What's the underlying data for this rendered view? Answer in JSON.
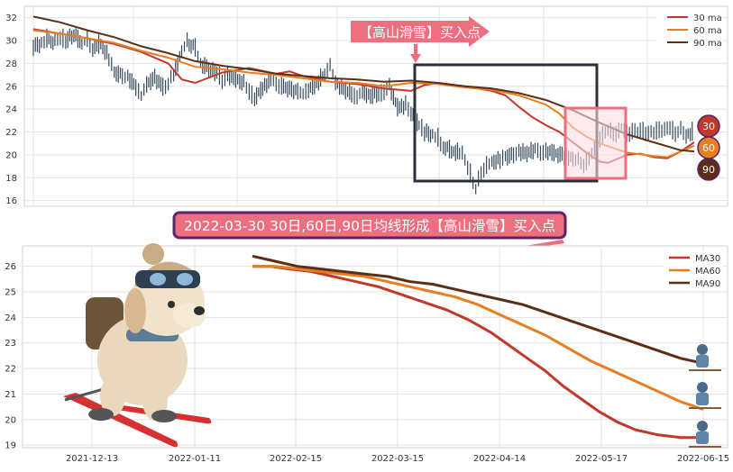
{
  "chart_data": [
    {
      "type": "line",
      "panel": "top",
      "ylim": [
        15.5,
        33
      ],
      "yticks": [
        16,
        18,
        20,
        22,
        24,
        26,
        28,
        30,
        32
      ],
      "grid": true,
      "legend_position": "top-right",
      "series": [
        {
          "name": "30 ma",
          "color": "#c0392b",
          "points": [
            [
              0,
              31.0
            ],
            [
              10,
              30.6
            ],
            [
              20,
              30.2
            ],
            [
              30,
              29.7
            ],
            [
              40,
              29.0
            ],
            [
              50,
              28.0
            ],
            [
              55,
              26.6
            ],
            [
              60,
              26.3
            ],
            [
              70,
              27.2
            ],
            [
              80,
              27.6
            ],
            [
              90,
              27.1
            ],
            [
              95,
              27.3
            ],
            [
              100,
              26.9
            ],
            [
              110,
              26.4
            ],
            [
              120,
              26.2
            ],
            [
              130,
              25.8
            ],
            [
              140,
              25.6
            ],
            [
              145,
              26.1
            ],
            [
              150,
              26.3
            ],
            [
              160,
              26.0
            ],
            [
              170,
              25.6
            ],
            [
              175,
              25.2
            ],
            [
              180,
              24.2
            ],
            [
              185,
              23.3
            ],
            [
              190,
              22.6
            ],
            [
              195,
              22.0
            ],
            [
              200,
              21.1
            ],
            [
              205,
              20.2
            ],
            [
              210,
              19.4
            ],
            [
              213,
              19.3
            ],
            [
              216,
              19.6
            ],
            [
              220,
              20.0
            ],
            [
              225,
              20.1
            ],
            [
              230,
              19.8
            ],
            [
              235,
              19.7
            ],
            [
              240,
              20.3
            ],
            [
              245,
              21.1
            ]
          ]
        },
        {
          "name": "60 ma",
          "color": "#e67e22",
          "points": [
            [
              0,
              30.9
            ],
            [
              10,
              30.6
            ],
            [
              20,
              30.2
            ],
            [
              30,
              29.8
            ],
            [
              40,
              29.1
            ],
            [
              50,
              28.5
            ],
            [
              60,
              27.7
            ],
            [
              70,
              27.5
            ],
            [
              80,
              27.2
            ],
            [
              90,
              27.0
            ],
            [
              100,
              26.7
            ],
            [
              110,
              26.4
            ],
            [
              120,
              26.3
            ],
            [
              130,
              26.0
            ],
            [
              140,
              26.3
            ],
            [
              150,
              26.2
            ],
            [
              160,
              25.9
            ],
            [
              170,
              25.7
            ],
            [
              180,
              25.2
            ],
            [
              190,
              24.4
            ],
            [
              195,
              23.6
            ],
            [
              200,
              22.4
            ],
            [
              205,
              21.6
            ],
            [
              210,
              21.0
            ],
            [
              215,
              20.6
            ],
            [
              220,
              20.2
            ],
            [
              230,
              19.9
            ],
            [
              235,
              19.8
            ],
            [
              240,
              20.3
            ],
            [
              245,
              20.8
            ]
          ]
        },
        {
          "name": "90 ma",
          "color": "#5d2e17",
          "points": [
            [
              0,
              32.1
            ],
            [
              10,
              31.6
            ],
            [
              20,
              30.9
            ],
            [
              30,
              30.3
            ],
            [
              40,
              29.5
            ],
            [
              50,
              28.9
            ],
            [
              60,
              28.2
            ],
            [
              70,
              27.8
            ],
            [
              80,
              27.5
            ],
            [
              90,
              27.1
            ],
            [
              100,
              26.9
            ],
            [
              110,
              26.7
            ],
            [
              120,
              26.6
            ],
            [
              130,
              26.4
            ],
            [
              140,
              26.5
            ],
            [
              150,
              26.3
            ],
            [
              160,
              26.0
            ],
            [
              170,
              25.8
            ],
            [
              180,
              25.4
            ],
            [
              190,
              24.8
            ],
            [
              200,
              23.9
            ],
            [
              210,
              22.8
            ],
            [
              220,
              21.8
            ],
            [
              230,
              21.1
            ],
            [
              240,
              20.4
            ],
            [
              245,
              20.3
            ]
          ]
        }
      ],
      "candles": [
        [
          0,
          29.5
        ],
        [
          3,
          29.8
        ],
        [
          5,
          30.2
        ],
        [
          8,
          29.9
        ],
        [
          10,
          30.4
        ],
        [
          12,
          30.0
        ],
        [
          15,
          30.6
        ],
        [
          18,
          29.8
        ],
        [
          20,
          30.1
        ],
        [
          22,
          29.4
        ],
        [
          25,
          29.8
        ],
        [
          28,
          28.5
        ],
        [
          30,
          27.2
        ],
        [
          33,
          27.0
        ],
        [
          35,
          26.8
        ],
        [
          38,
          26.0
        ],
        [
          40,
          25.2
        ],
        [
          42,
          26.2
        ],
        [
          45,
          26.8
        ],
        [
          48,
          26.0
        ],
        [
          50,
          26.3
        ],
        [
          52,
          27.0
        ],
        [
          55,
          29.2
        ],
        [
          57,
          29.9
        ],
        [
          60,
          29.4
        ],
        [
          62,
          28.0
        ],
        [
          65,
          27.6
        ],
        [
          68,
          27.2
        ],
        [
          70,
          26.6
        ],
        [
          72,
          27.0
        ],
        [
          75,
          26.7
        ],
        [
          78,
          26.3
        ],
        [
          80,
          25.6
        ],
        [
          82,
          25.0
        ],
        [
          85,
          25.9
        ],
        [
          88,
          26.6
        ],
        [
          90,
          26.2
        ],
        [
          92,
          26.1
        ],
        [
          95,
          25.8
        ],
        [
          98,
          25.6
        ],
        [
          100,
          25.3
        ],
        [
          102,
          25.8
        ],
        [
          105,
          26.2
        ],
        [
          108,
          27.2
        ],
        [
          110,
          27.8
        ],
        [
          112,
          26.4
        ],
        [
          115,
          25.8
        ],
        [
          118,
          25.4
        ],
        [
          120,
          25.1
        ],
        [
          122,
          25.5
        ],
        [
          125,
          25.2
        ],
        [
          128,
          25.4
        ],
        [
          130,
          25.6
        ],
        [
          132,
          26.0
        ],
        [
          135,
          24.2
        ],
        [
          138,
          24.4
        ],
        [
          140,
          23.8
        ],
        [
          143,
          22.6
        ],
        [
          145,
          22.0
        ],
        [
          148,
          21.8
        ],
        [
          150,
          21.5
        ],
        [
          152,
          20.8
        ],
        [
          155,
          20.4
        ],
        [
          158,
          20.2
        ],
        [
          160,
          19.7
        ],
        [
          162,
          18.4
        ],
        [
          164,
          17.0
        ],
        [
          166,
          18.6
        ],
        [
          168,
          19.1
        ],
        [
          170,
          19.4
        ],
        [
          173,
          19.6
        ],
        [
          175,
          19.8
        ],
        [
          178,
          20.1
        ],
        [
          180,
          20.3
        ],
        [
          183,
          20.2
        ],
        [
          186,
          20.5
        ],
        [
          188,
          20.3
        ],
        [
          190,
          20.4
        ],
        [
          193,
          20.2
        ],
        [
          196,
          20.0
        ],
        [
          200,
          19.8
        ],
        [
          202,
          19.5
        ],
        [
          204,
          19.2
        ],
        [
          206,
          19.8
        ],
        [
          208,
          20.4
        ],
        [
          210,
          21.5
        ],
        [
          212,
          22.0
        ],
        [
          214,
          22.1
        ],
        [
          216,
          21.9
        ],
        [
          218,
          22.3
        ],
        [
          220,
          21.9
        ],
        [
          222,
          22.1
        ],
        [
          224,
          22.0
        ],
        [
          226,
          22.2
        ],
        [
          228,
          21.8
        ],
        [
          230,
          22.0
        ],
        [
          232,
          22.3
        ],
        [
          234,
          22.1
        ],
        [
          236,
          22.5
        ],
        [
          238,
          21.9
        ],
        [
          240,
          22.2
        ],
        [
          242,
          21.8
        ],
        [
          245,
          22.1
        ]
      ],
      "badges": [
        "30",
        "60",
        "90"
      ]
    },
    {
      "type": "line",
      "panel": "bottom",
      "ylim": [
        18.9,
        26.8
      ],
      "yticks": [
        19,
        20,
        21,
        22,
        23,
        24,
        25,
        26
      ],
      "xtick_labels": [
        "2021-12-13",
        "2022-01-11",
        "2022-02-15",
        "2022-03-15",
        "2022-04-14",
        "2022-05-17",
        "2022-06-15"
      ],
      "grid": true,
      "legend_position": "top-right",
      "series": [
        {
          "name": "MA30",
          "color": "#c0392b",
          "points": [
            [
              0,
              26.0
            ],
            [
              8,
              26.0
            ],
            [
              16,
              25.9
            ],
            [
              26,
              25.8
            ],
            [
              36,
              25.6
            ],
            [
              46,
              25.4
            ],
            [
              56,
              25.2
            ],
            [
              66,
              24.9
            ],
            [
              76,
              24.6
            ],
            [
              86,
              24.3
            ],
            [
              96,
              23.9
            ],
            [
              106,
              23.4
            ],
            [
              114,
              22.9
            ],
            [
              122,
              22.4
            ],
            [
              130,
              21.9
            ],
            [
              138,
              21.3
            ],
            [
              146,
              20.8
            ],
            [
              154,
              20.3
            ],
            [
              162,
              19.9
            ],
            [
              170,
              19.6
            ],
            [
              180,
              19.4
            ],
            [
              190,
              19.3
            ],
            [
              200,
              19.3
            ]
          ]
        },
        {
          "name": "MA60",
          "color": "#e67e22",
          "points": [
            [
              0,
              26.0
            ],
            [
              10,
              26.0
            ],
            [
              20,
              25.9
            ],
            [
              30,
              25.8
            ],
            [
              40,
              25.7
            ],
            [
              50,
              25.6
            ],
            [
              60,
              25.4
            ],
            [
              70,
              25.2
            ],
            [
              80,
              25.0
            ],
            [
              90,
              24.8
            ],
            [
              100,
              24.5
            ],
            [
              110,
              24.1
            ],
            [
              120,
              23.7
            ],
            [
              130,
              23.3
            ],
            [
              140,
              22.8
            ],
            [
              150,
              22.3
            ],
            [
              160,
              21.9
            ],
            [
              170,
              21.5
            ],
            [
              180,
              21.1
            ],
            [
              190,
              20.7
            ],
            [
              200,
              20.4
            ]
          ]
        },
        {
          "name": "MA90",
          "color": "#5d2e17",
          "points": [
            [
              0,
              26.4
            ],
            [
              10,
              26.2
            ],
            [
              20,
              26.0
            ],
            [
              30,
              25.9
            ],
            [
              40,
              25.8
            ],
            [
              50,
              25.7
            ],
            [
              60,
              25.6
            ],
            [
              70,
              25.4
            ],
            [
              80,
              25.3
            ],
            [
              90,
              25.1
            ],
            [
              100,
              24.9
            ],
            [
              110,
              24.7
            ],
            [
              120,
              24.5
            ],
            [
              130,
              24.2
            ],
            [
              140,
              23.9
            ],
            [
              150,
              23.6
            ],
            [
              160,
              23.3
            ],
            [
              170,
              23.0
            ],
            [
              180,
              22.7
            ],
            [
              190,
              22.4
            ],
            [
              200,
              22.2
            ]
          ]
        }
      ]
    }
  ],
  "annotations": {
    "top_callout": "【高山滑雪】买入点",
    "banner": "2022-03-30 30日,60日,90日均线形成【高山滑雪】买入点"
  },
  "colors": {
    "ma30": "#c0392b",
    "ma60": "#e67e22",
    "ma90": "#5d2e17",
    "candle": "#34495e",
    "callout_fill": "#ec6f80",
    "banner_border": "#5b2568",
    "black_box": "#2c3038",
    "pink_box": "#ec6f80"
  }
}
